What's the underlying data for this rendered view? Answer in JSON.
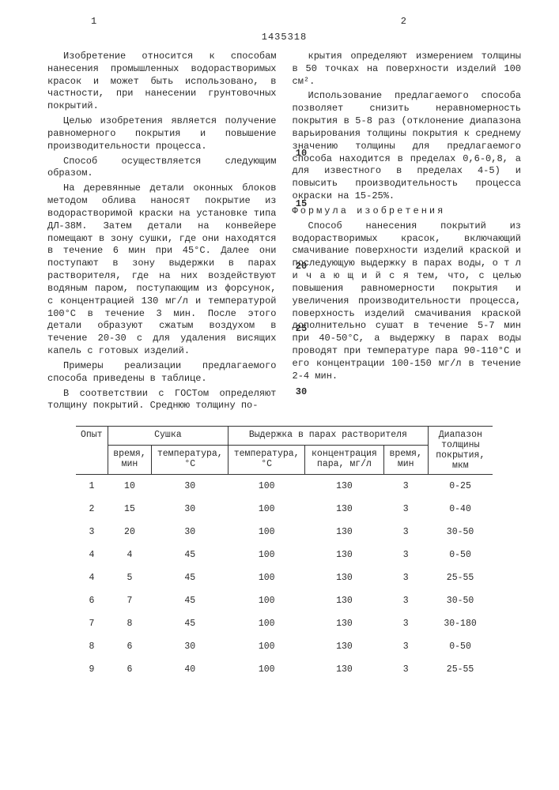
{
  "page_left_num": "1",
  "page_right_num": "2",
  "doc_number": "1435318",
  "line_markers": {
    "m10": "10",
    "m15": "15",
    "m20": "20",
    "m25": "25",
    "m30": "30"
  },
  "left_paras": [
    "Изобретение относится к способам нанесения промышленных водорастворимых красок и может быть использовано, в частности, при нанесении грунтовочных покрытий.",
    "Целью изобретения является получение равномерного покрытия и повышение производительности процесса.",
    "Способ осуществляется следующим образом.",
    "На деревянные детали оконных блоков методом облива наносят покрытие из водорастворимой краски на установке типа ДЛ-38М. Затем детали на конвейере помещают в зону сушки, где они находятся в течение 6 мин при 45°С. Далее они поступают в зону выдержки в парах растворителя, где на них воздействуют водяным паром, поступающим из форсунок, с концентрацией 130 мг/л и температурой 100°С в течение 3 мин. После этого детали образуют сжатым воздухом в течение 20-30 с для удаления висящих капель с готовых изделий.",
    "Примеры реализации предлагаемого способа приведены в таблице.",
    "В соответствии с ГОСТом определяют толщину покрытий. Среднюю толщину по-"
  ],
  "right_paras_top": [
    "крытия определяют измерением толщины в 50 точках на поверхности изделий 100 см².",
    "Использование предлагаемого способа позволяет снизить неравномерность покрытия в 5-8 раз (отклонение диапазона варьирования толщины покрытия к среднему значению толщины для предлагаемого способа находится в пределах 0,6-0,8, а для известного в пределах 4-5) и повысить производительность процесса окраски на 15-25%."
  ],
  "formula_title": "Формула изобретения",
  "right_paras_bottom": [
    "Способ нанесения покрытий из водорастворимых красок, включающий смачивание поверхности изделий краской и последующую выдержку в парах воды, о т л и ч а ю щ и й с я  тем, что, с целью повышения равномерности покрытия и увеличения производительности процесса, поверхность изделий смачивания краской дополнительно сушат в течение 5-7 мин при 40-50°С, а выдержку в парах воды проводят при температуре пара 90-110°С и его концентрации 100-150 мг/л в течение 2-4 мин."
  ],
  "table": {
    "head_row1": [
      "Опыт",
      "Сушка",
      "Выдержка в парах растворителя",
      "Диапазон толщины покрытия, мкм"
    ],
    "head_row2": [
      "время, мин",
      "температура, °С",
      "температура, °С",
      "концентрация пара, мг/л",
      "время, мин"
    ],
    "rows": [
      [
        "1",
        "10",
        "30",
        "100",
        "130",
        "3",
        "0-25"
      ],
      [
        "2",
        "15",
        "30",
        "100",
        "130",
        "3",
        "0-40"
      ],
      [
        "3",
        "20",
        "30",
        "100",
        "130",
        "3",
        "30-50"
      ],
      [
        "4",
        "4",
        "45",
        "100",
        "130",
        "3",
        "0-50"
      ],
      [
        "4",
        "5",
        "45",
        "100",
        "130",
        "3",
        "25-55"
      ],
      [
        "6",
        "7",
        "45",
        "100",
        "130",
        "3",
        "30-50"
      ],
      [
        "7",
        "8",
        "45",
        "100",
        "130",
        "3",
        "30-180"
      ],
      [
        "8",
        "6",
        "30",
        "100",
        "130",
        "3",
        "0-50"
      ],
      [
        "9",
        "6",
        "40",
        "100",
        "130",
        "3",
        "25-55"
      ]
    ]
  }
}
